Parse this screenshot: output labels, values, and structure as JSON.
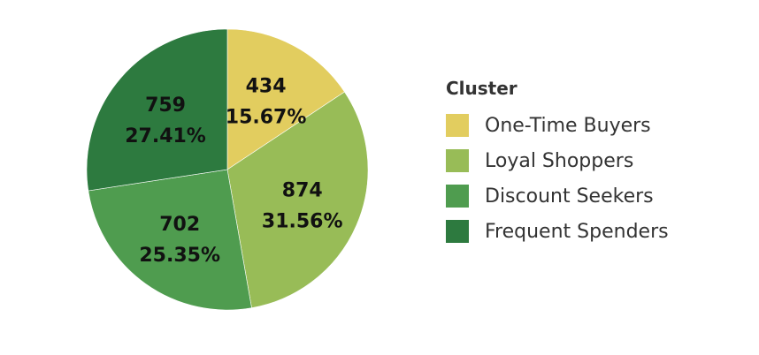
{
  "chart_data": {
    "type": "pie",
    "legend_title": "Cluster",
    "legend_position": "right",
    "slices": [
      {
        "name": "One-Time Buyers",
        "value": 434,
        "percent": "15.67%",
        "color": "#e2cd5f"
      },
      {
        "name": "Loyal Shoppers",
        "value": 874,
        "percent": "31.56%",
        "color": "#98bc57"
      },
      {
        "name": "Discount Seekers",
        "value": 702,
        "percent": "25.35%",
        "color": "#4f9c4f"
      },
      {
        "name": "Frequent Spenders",
        "value": 759,
        "percent": "27.41%",
        "color": "#2d7a3f"
      }
    ]
  }
}
